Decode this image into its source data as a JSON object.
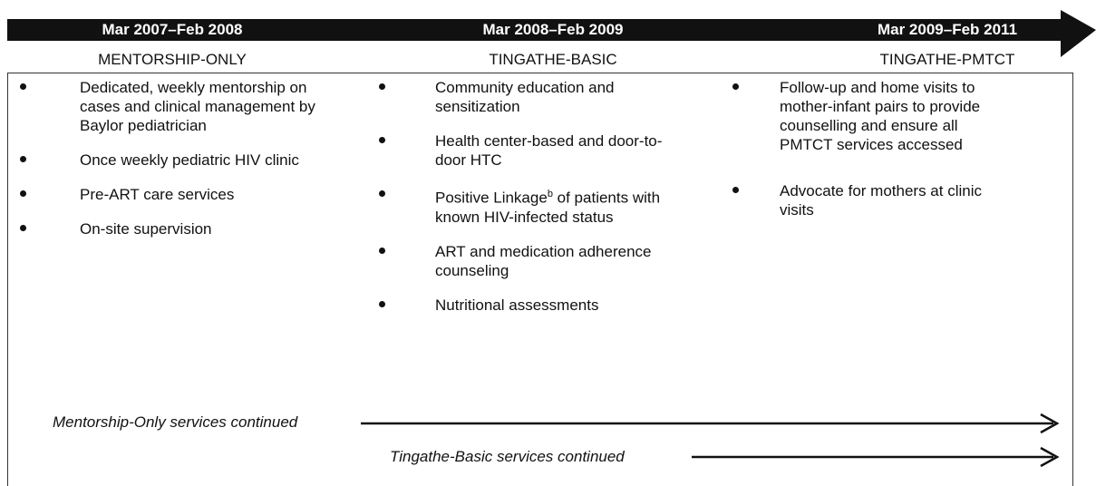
{
  "phases": [
    {
      "period": "Mar 2007–Feb 2008",
      "name": "MENTORSHIP-ONLY",
      "items": [
        {
          "text": "Dedicated, weekly mentorship on cases and clinical management by Baylor pediatrician"
        },
        {
          "text": "Once weekly pediatric HIV clinic"
        },
        {
          "text": "Pre-ART care services"
        },
        {
          "text": "On-site supervision"
        }
      ]
    },
    {
      "period": "Mar 2008–Feb 2009",
      "name": "TINGATHE-BASIC",
      "items": [
        {
          "text": "Community education and sensitization"
        },
        {
          "text": "Health center-based and door-to-door HTC"
        },
        {
          "text": "Positive Linkage",
          "sup": "b",
          "rest": " of patients with known HIV-infected status"
        },
        {
          "text": "ART and medication adherence counseling"
        },
        {
          "text": "Nutritional assessments"
        }
      ]
    },
    {
      "period": "Mar 2009–Feb 2011",
      "name": "TINGATHE-PMTCT",
      "items": [
        {
          "text": "Follow-up and home visits to mother-infant pairs to provide counselling and ensure all PMTCT services accessed"
        },
        {
          "text": "Advocate for mothers at clinic visits"
        }
      ]
    }
  ],
  "continued": [
    "Mentorship-Only services continued",
    "Tingathe-Basic services continued"
  ]
}
